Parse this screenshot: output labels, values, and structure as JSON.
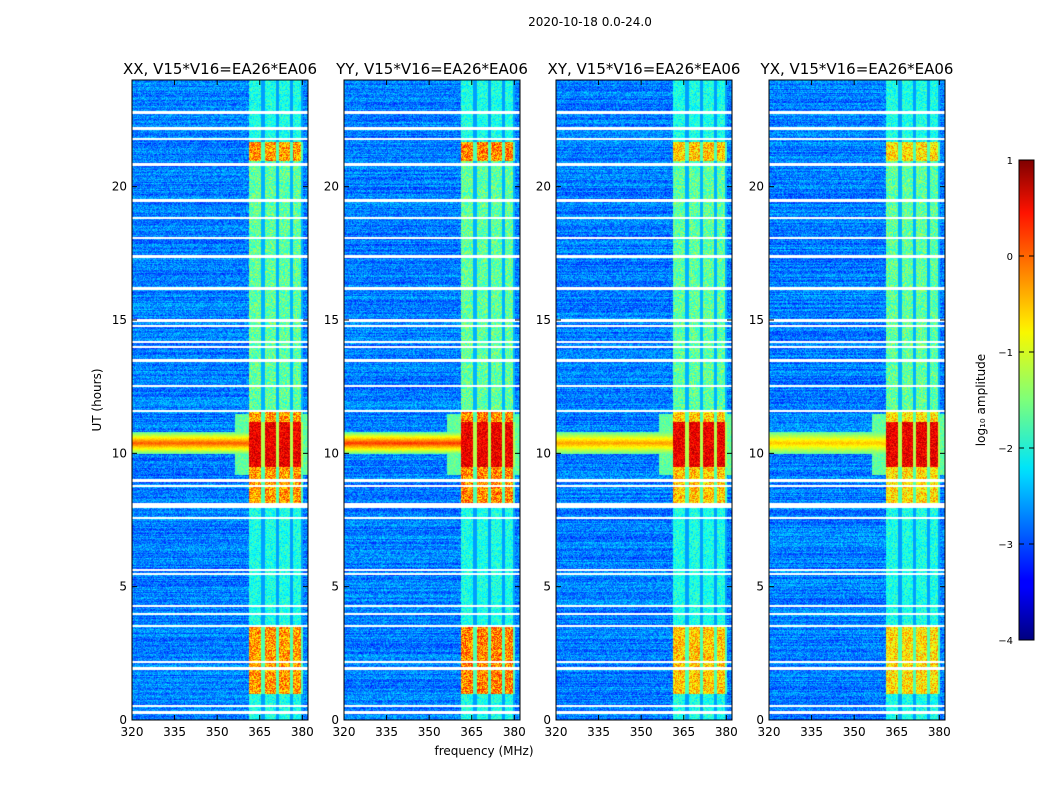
{
  "figure_title": "2020-10-18 0.0-24.0",
  "chart_data": {
    "type": "heatmap",
    "xlabel": "frequency (MHz)",
    "ylabel": "UT (hours)",
    "xlim": [
      320,
      382
    ],
    "ylim": [
      0,
      24
    ],
    "xticks": [
      320,
      335,
      350,
      365,
      380
    ],
    "yticks": [
      0,
      5,
      10,
      15,
      20
    ],
    "panels": [
      {
        "title": "XX, V15*V16=EA26*EA06",
        "rfi_strength": 0.9
      },
      {
        "title": "YY, V15*V16=EA26*EA06",
        "rfi_strength": 1.0
      },
      {
        "title": "XY, V15*V16=EA26*EA06",
        "rfi_strength": 0.7
      },
      {
        "title": "YX, V15*V16=EA26*EA06",
        "rfi_strength": 0.6
      }
    ],
    "colorbar": {
      "label": "log₁₀ amplitude",
      "range": [
        -4,
        1
      ],
      "ticks": [
        1,
        0,
        -1,
        -2,
        -3,
        -4
      ],
      "tick_labels": [
        "1",
        "0",
        "−1",
        "−2",
        "−3",
        "−4"
      ],
      "colormap": "jet"
    },
    "features": {
      "rfi_band_mhz": [
        361,
        380
      ],
      "rfi_subchannels_mhz": [
        [
          361,
          366
        ],
        [
          366,
          371
        ],
        [
          371,
          376
        ],
        [
          376,
          380
        ]
      ],
      "strong_rfi_hours": [
        [
          8.0,
          11.6
        ],
        [
          21.0,
          21.7
        ],
        [
          1.0,
          3.6
        ]
      ],
      "medium_rfi_hours": [
        [
          19.0,
          20.8
        ],
        [
          11.6,
          14.5
        ],
        [
          14.5,
          21.0
        ]
      ],
      "broadband_burst_hours": [
        10.0,
        10.8
      ],
      "flagged_hours": [
        0.3,
        0.55,
        1.95,
        2.2,
        3.55,
        4.0,
        4.3,
        5.5,
        5.65,
        7.6,
        8.0,
        8.1,
        8.8,
        9.0,
        11.6,
        12.55,
        13.5,
        14.0,
        14.2,
        14.8,
        15.0,
        16.2,
        17.4,
        18.1,
        18.85,
        19.5,
        20.85,
        21.8,
        22.2,
        22.8
      ]
    }
  }
}
